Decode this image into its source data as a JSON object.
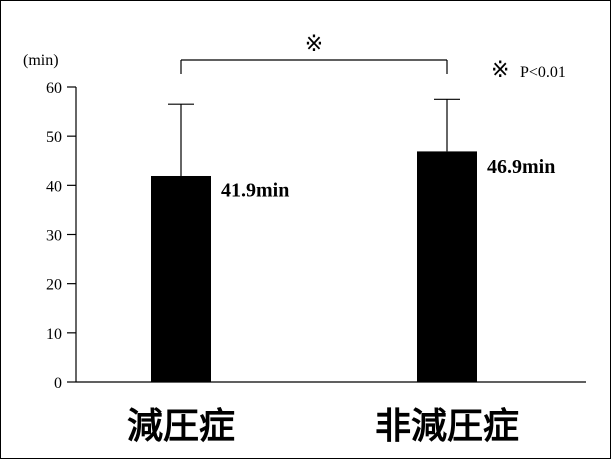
{
  "chart_data": {
    "type": "bar",
    "categories": [
      "減圧症",
      "非減圧症"
    ],
    "values": [
      41.9,
      46.9
    ],
    "value_labels": [
      "41.9min",
      "46.9min"
    ],
    "error_upper": [
      56.5,
      57.5
    ],
    "ylabel": "(min)",
    "ylim": [
      0,
      60
    ],
    "yticks": [
      0,
      10,
      20,
      30,
      40,
      50,
      60
    ],
    "grid": false,
    "bar_color": "#000000",
    "significance": {
      "mark": "※",
      "legend_mark": "※",
      "legend_text": "P<0.01"
    }
  }
}
